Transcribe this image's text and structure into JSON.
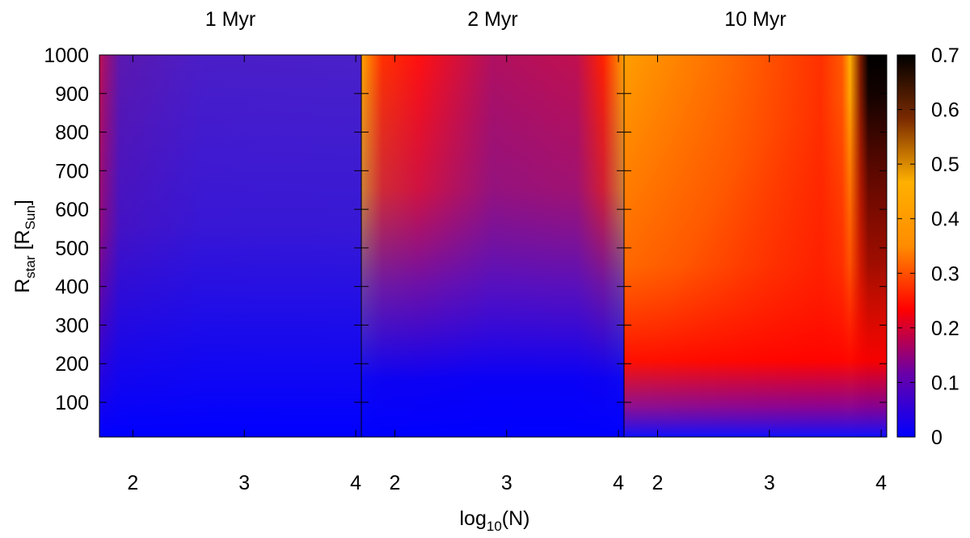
{
  "chart_data": {
    "type": "heatmap",
    "panels": [
      {
        "title": "1 Myr"
      },
      {
        "title": "2 Myr"
      },
      {
        "title": "10 Myr"
      }
    ],
    "xlabel": {
      "base": "log",
      "sub": "10",
      "rest": "(N)"
    },
    "ylabel": {
      "base": "R",
      "sub1": "star",
      "mid": " [R",
      "sub2": "Sun",
      "end": "]"
    },
    "x_range": [
      1.7,
      4.05
    ],
    "x_ticks": [
      2,
      3,
      4
    ],
    "y_range": [
      10,
      1000
    ],
    "y_ticks": [
      100,
      200,
      300,
      400,
      500,
      600,
      700,
      800,
      900,
      1000
    ],
    "colorbar": {
      "range": [
        0,
        0.7
      ],
      "ticks": [
        0,
        0.1,
        0.2,
        0.3,
        0.4,
        0.5,
        0.6,
        0.7
      ],
      "palette": [
        "#0000ff",
        "#6a00a8",
        "#ff0000",
        "#ff8c00",
        "#ffb000",
        "#7a2a00",
        "#000000"
      ]
    },
    "grid": false
  }
}
